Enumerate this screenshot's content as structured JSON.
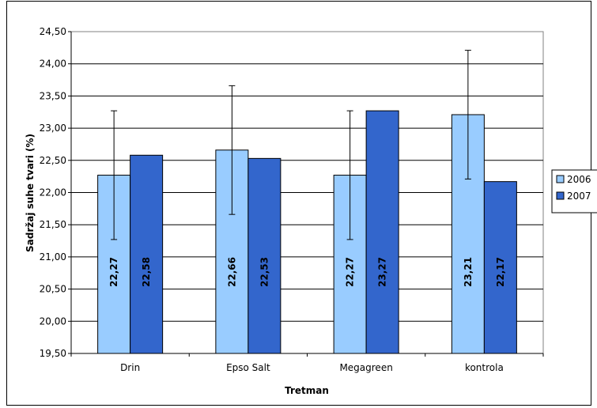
{
  "chart_data": {
    "type": "bar",
    "title": "",
    "xlabel": "Tretman",
    "ylabel": "Sadržaj suhe tvari (%)",
    "categories": [
      "Drin",
      "Epso Salt",
      "Megagreen",
      "kontrola"
    ],
    "ylim": [
      19.5,
      24.5
    ],
    "yticks": [
      "19,50",
      "20,00",
      "20,50",
      "21,00",
      "21,50",
      "22,00",
      "22,50",
      "23,00",
      "23,50",
      "24,00",
      "24,50"
    ],
    "grid": true,
    "legend_position": "right",
    "series": [
      {
        "name": "2006",
        "color": "#99ccff",
        "values": [
          22.27,
          22.66,
          22.27,
          23.21
        ],
        "labels": [
          "22,27",
          "22,66",
          "22,27",
          "23,21"
        ],
        "error": [
          1.0,
          1.0,
          1.0,
          1.0
        ]
      },
      {
        "name": "2007",
        "color": "#3366cc",
        "values": [
          22.58,
          22.53,
          23.27,
          22.17
        ],
        "labels": [
          "22,58",
          "22,53",
          "23,27",
          "22,17"
        ]
      }
    ]
  }
}
